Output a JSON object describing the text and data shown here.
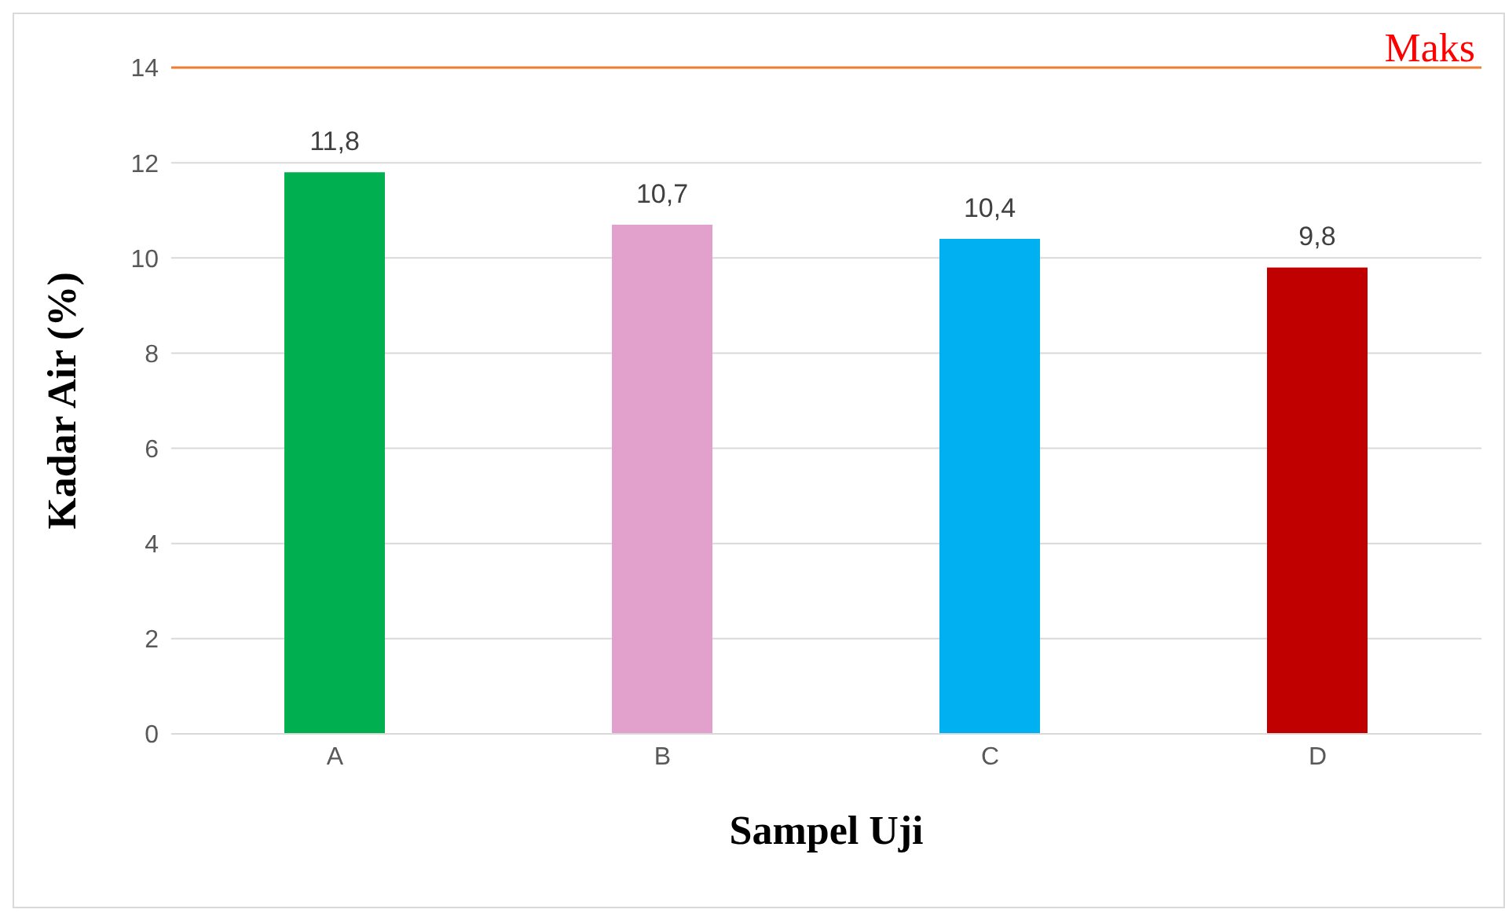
{
  "chart_data": {
    "type": "bar",
    "xlabel": "Sampel Uji",
    "ylabel": "Kadar Air (%)",
    "categories": [
      "A",
      "B",
      "C",
      "D"
    ],
    "values": [
      11.8,
      10.7,
      10.4,
      9.8
    ],
    "colors": [
      "#00b050",
      "#e2a0cc",
      "#00b0f0",
      "#c00000"
    ],
    "value_labels": [
      "11,8",
      "10,7",
      "10,4",
      "9,8"
    ],
    "ylim": [
      0,
      14
    ],
    "yticks": [
      0,
      2,
      4,
      6,
      8,
      10,
      12,
      14
    ],
    "grid": "y",
    "ref_lines": [
      {
        "axis": "y",
        "value": 14,
        "label": "Maks",
        "color": "#ed7d31"
      }
    ]
  }
}
